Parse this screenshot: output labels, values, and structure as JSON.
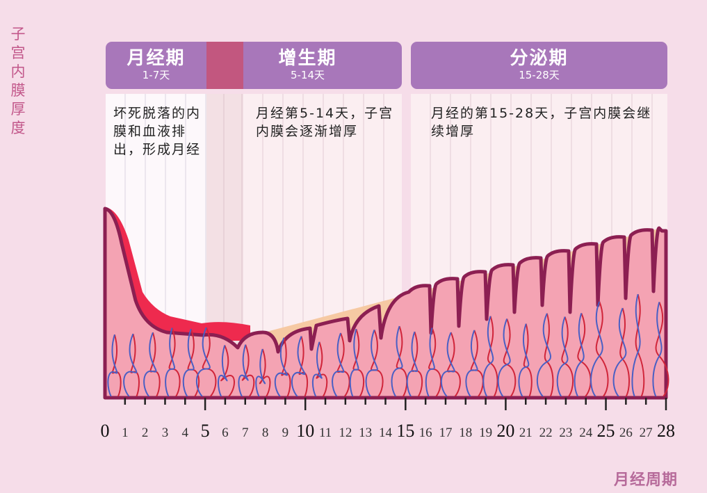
{
  "y_axis_label": "子宫内膜厚度",
  "x_axis_label": "月经周期",
  "phases": [
    {
      "name": "月经期",
      "days": "1-7天",
      "description": "坏死脱落的内膜和血液排出，形成月经"
    },
    {
      "name": "增生期",
      "days": "5-14天",
      "description": "月经第5-14天，子宫内膜会逐渐增厚"
    },
    {
      "name": "分泌期",
      "days": "15-28天",
      "description": "月经的第15-28天，子宫内膜会继续增厚"
    }
  ],
  "x_ticks": [
    "0",
    "1",
    "2",
    "3",
    "4",
    "5",
    "6",
    "7",
    "8",
    "9",
    "10",
    "11",
    "12",
    "13",
    "14",
    "15",
    "16",
    "17",
    "18",
    "19",
    "20",
    "21",
    "22",
    "23",
    "24",
    "25",
    "26",
    "27",
    "28"
  ],
  "colors": {
    "header": "#a877ba",
    "overlap": "#c2577f",
    "tissue": "#f4a3b3",
    "outline": "#8c1f52",
    "blood": "#ee2a4e",
    "artery": "#d0253a",
    "vein": "#4a5fc4"
  }
}
